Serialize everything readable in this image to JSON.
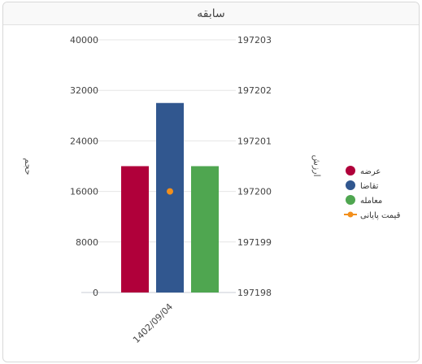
{
  "panel": {
    "title": "سابقه"
  },
  "chart_data": {
    "type": "bar",
    "categories": [
      "1402/09/04"
    ],
    "series": [
      {
        "name": "عرضه",
        "values": [
          20000
        ],
        "color": "#b0003a",
        "axis": "left"
      },
      {
        "name": "تقاضا",
        "values": [
          30000
        ],
        "color": "#31578f",
        "axis": "left"
      },
      {
        "name": "معامله",
        "values": [
          20000
        ],
        "color": "#4fa650",
        "axis": "left"
      },
      {
        "name": "قیمت پایانی",
        "type": "line",
        "values": [
          197200
        ],
        "color": "#f28f1c",
        "axis": "right"
      }
    ],
    "ylabel_left": "حجم",
    "ylabel_right": "ارزش",
    "ylim_left": [
      0,
      40000
    ],
    "yticks_left": [
      "40000",
      "32000",
      "24000",
      "16000",
      "8000",
      "0"
    ],
    "ylim_right": [
      197198,
      197203
    ],
    "yticks_right": [
      "197203",
      "197202",
      "197201",
      "197200",
      "197199",
      "197198"
    ],
    "grid": true,
    "legend_position": "right"
  }
}
